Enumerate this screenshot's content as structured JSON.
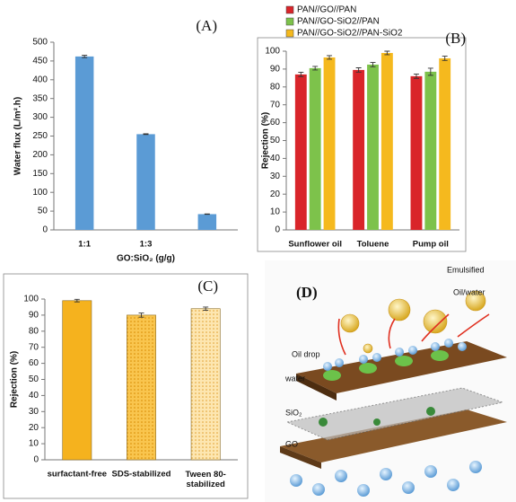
{
  "chart_data": [
    {
      "type": "bar",
      "title": "(A)",
      "ylabel": "Water flux (L/m².h)",
      "xlabel": "GO:SiO₂ (g/g)",
      "categories": [
        "1:1",
        "1:3",
        null
      ],
      "values": [
        462,
        255,
        42
      ],
      "errors": [
        3,
        1,
        0.5
      ],
      "color": "#5b9bd5",
      "ylim": [
        0,
        500
      ],
      "yticks": [
        0,
        50,
        100,
        150,
        200,
        250,
        300,
        350,
        400,
        450,
        500
      ]
    },
    {
      "type": "bar",
      "title": "(B)",
      "ylabel": "Rejection (%)",
      "categories": [
        "Sunflower oil",
        "Toluene",
        "Pump oil"
      ],
      "series": [
        {
          "name": "PAN//GO//PAN",
          "color": "#d9252a",
          "values": [
            87,
            89.5,
            86
          ],
          "errors": [
            1.2,
            1.2,
            1.2
          ]
        },
        {
          "name": "PAN//GO-SiO2//PAN",
          "color": "#7dc24b",
          "values": [
            90.5,
            92.5,
            88.5
          ],
          "errors": [
            1,
            1.2,
            2
          ]
        },
        {
          "name": "PAN//GO-SiO2//PAN-SiO2",
          "color": "#f5b91e",
          "values": [
            96.5,
            99,
            96
          ],
          "errors": [
            1,
            1,
            1.2
          ]
        }
      ],
      "ylim": [
        0,
        100
      ],
      "yticks": [
        0,
        10,
        20,
        30,
        40,
        50,
        60,
        70,
        80,
        90,
        100
      ],
      "legend": "top"
    },
    {
      "type": "bar",
      "title": "(C)",
      "ylabel": "Rejection (%)",
      "categories": [
        "surfactant-free",
        "SDS-stabilized",
        "Tween 80-stabilized"
      ],
      "values": [
        99,
        90,
        94
      ],
      "errors": [
        0.8,
        1.3,
        1
      ],
      "colors": [
        "#f5b21e",
        "#f9c54e",
        "#fde6b0"
      ],
      "fill_styles": [
        "solid",
        "dotted",
        "dotted"
      ],
      "ylim": [
        0,
        100
      ],
      "yticks": [
        0,
        10,
        20,
        30,
        40,
        50,
        60,
        70,
        80,
        90,
        100
      ]
    }
  ],
  "panel_d": {
    "title": "(D)",
    "labels": [
      "Emulsified",
      "Oil/water",
      "Oil drop",
      "water",
      "SiO₂",
      "GO"
    ]
  }
}
